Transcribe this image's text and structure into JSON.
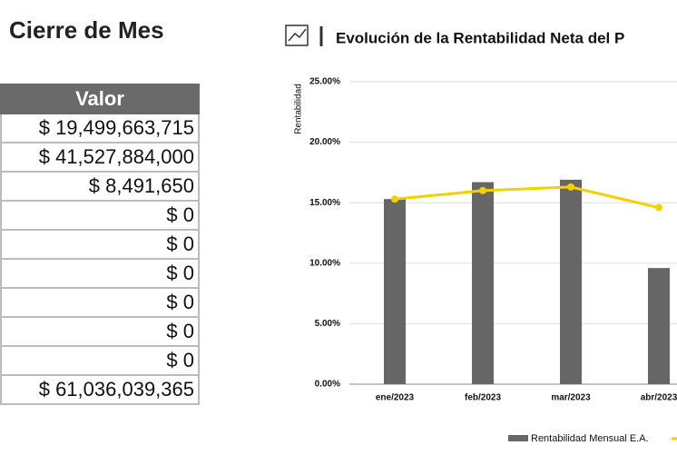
{
  "header": {
    "title": "Cierre de Mes"
  },
  "table": {
    "column": "Valor",
    "rows": [
      "$ 19,499,663,715",
      "$ 41,527,884,000",
      "$ 8,491,650",
      "$ 0",
      "$ 0",
      "$ 0",
      "$ 0",
      "$ 0",
      "$ 0",
      "$ 61,036,039,365"
    ]
  },
  "chart_data": {
    "type": "bar",
    "title": "Evolución de la Rentabilidad Neta del P",
    "y_label": "Rentabilidad",
    "categories": [
      "ene/2023",
      "feb/2023",
      "mar/2023",
      "abr/2023"
    ],
    "series": [
      {
        "name": "Rentabilidad Mensual E.A.",
        "type": "bar",
        "color": "#666666",
        "values": [
          15.3,
          16.7,
          16.9,
          9.6
        ]
      },
      {
        "type": "line",
        "color": "#f5d000",
        "values": [
          15.3,
          16.0,
          16.3,
          14.6
        ]
      }
    ],
    "ylim": [
      0,
      25
    ],
    "yticks": [
      {
        "value": 0,
        "label": "0.00%"
      },
      {
        "value": 5,
        "label": "5.00%"
      },
      {
        "value": 10,
        "label": "10.00%"
      },
      {
        "value": 15,
        "label": "15.00%"
      },
      {
        "value": 20,
        "label": "20.00%"
      },
      {
        "value": 25,
        "label": "25.00%"
      }
    ],
    "grid": true
  }
}
